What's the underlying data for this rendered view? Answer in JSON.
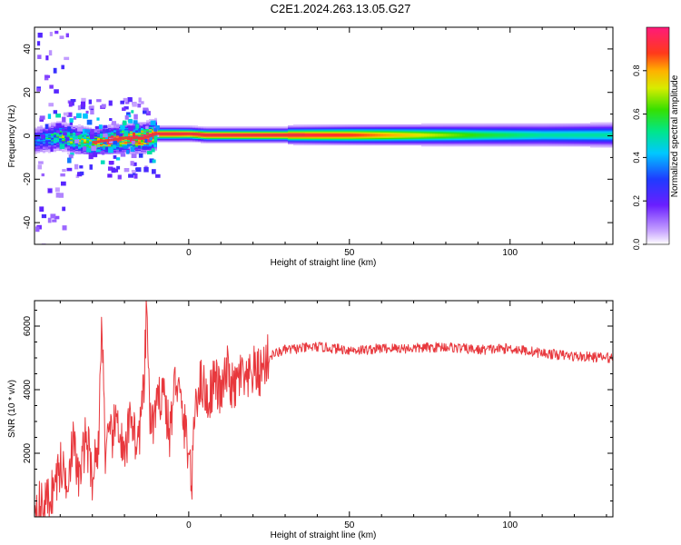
{
  "title": "C2E1.2024.263.13.05.G27",
  "colors": {
    "snr_line": "#e8383d",
    "ridge_core": "#e8383d",
    "axis": "#000000"
  },
  "chart_data": [
    {
      "type": "heatmap",
      "name": "spectrogram",
      "xlabel": "Height of straight line (km)",
      "ylabel": "Frequency (Hz)",
      "xlim": [
        -48,
        132
      ],
      "ylim": [
        -50,
        50
      ],
      "xticks": [
        0,
        50,
        100
      ],
      "xtick_labels": [
        "0",
        "50",
        "100"
      ],
      "yticks": [
        -40,
        -20,
        0,
        20,
        40
      ],
      "ytick_labels": [
        "-40",
        "-20",
        "0",
        "20",
        "40"
      ],
      "colorbar": {
        "label": "Normalized spectral amplitude",
        "range": [
          0,
          1
        ],
        "ticks": [
          0.0,
          0.2,
          0.4,
          0.6,
          0.8
        ],
        "tick_labels": [
          "0.0",
          "0.2",
          "0.4",
          "0.6",
          "0.8"
        ],
        "colormap": "rainbow (white-violet-blue-cyan-green-yellow-red-pink)"
      },
      "ridge": {
        "description_values": "dominant frequency per height",
        "x": [
          -48,
          -44,
          -40,
          -35,
          -30,
          -25,
          -20,
          -14,
          -10,
          -5,
          0,
          5,
          10,
          20,
          30,
          50,
          70,
          90,
          110,
          132
        ],
        "freq": [
          -2,
          -1,
          0,
          -2,
          -3,
          -2,
          -1,
          -1,
          1,
          1,
          1,
          0.5,
          0.5,
          0.5,
          0.5,
          0.5,
          0.5,
          0.5,
          0.5,
          0.5
        ],
        "amplitude": [
          0.3,
          0.4,
          0.55,
          0.6,
          0.65,
          0.8,
          0.85,
          0.95,
          0.95,
          0.95,
          0.9,
          0.95,
          0.95,
          0.95,
          0.95,
          0.9,
          0.75,
          0.6,
          0.5,
          0.5
        ]
      }
    },
    {
      "type": "line",
      "name": "snr",
      "xlabel": "Height of straight line (km)",
      "ylabel": "SNR (10 * v/v)",
      "xlim": [
        -48,
        132
      ],
      "ylim": [
        0,
        6800
      ],
      "xticks": [
        0,
        50,
        100
      ],
      "xtick_labels": [
        "0",
        "50",
        "100"
      ],
      "yticks": [
        2000,
        4000,
        6000
      ],
      "ytick_labels": [
        "2000",
        "4000",
        "6000"
      ],
      "x": [
        -48,
        -45,
        -42,
        -40,
        -38,
        -36,
        -34,
        -32,
        -30,
        -28,
        -27,
        -26,
        -24,
        -22,
        -20,
        -18,
        -16,
        -14,
        -13,
        -12,
        -10,
        -8,
        -6,
        -4,
        -2,
        0,
        1,
        2,
        4,
        6,
        8,
        10,
        12,
        14,
        16,
        18,
        20,
        22,
        24,
        26,
        30,
        35,
        40,
        45,
        50,
        55,
        60,
        70,
        80,
        90,
        100,
        110,
        120,
        132
      ],
      "y": [
        400,
        300,
        900,
        1600,
        1200,
        2300,
        1100,
        2600,
        1300,
        2400,
        6500,
        2000,
        2500,
        3100,
        1600,
        3400,
        2100,
        3900,
        6700,
        2800,
        3300,
        4200,
        2500,
        4500,
        3200,
        2100,
        1000,
        3700,
        4300,
        3600,
        4400,
        3800,
        4600,
        3900,
        4500,
        4100,
        4600,
        4500,
        4900,
        5100,
        5250,
        5300,
        5350,
        5300,
        5250,
        5250,
        5300,
        5300,
        5350,
        5250,
        5300,
        5150,
        5050,
        5000
      ]
    }
  ]
}
